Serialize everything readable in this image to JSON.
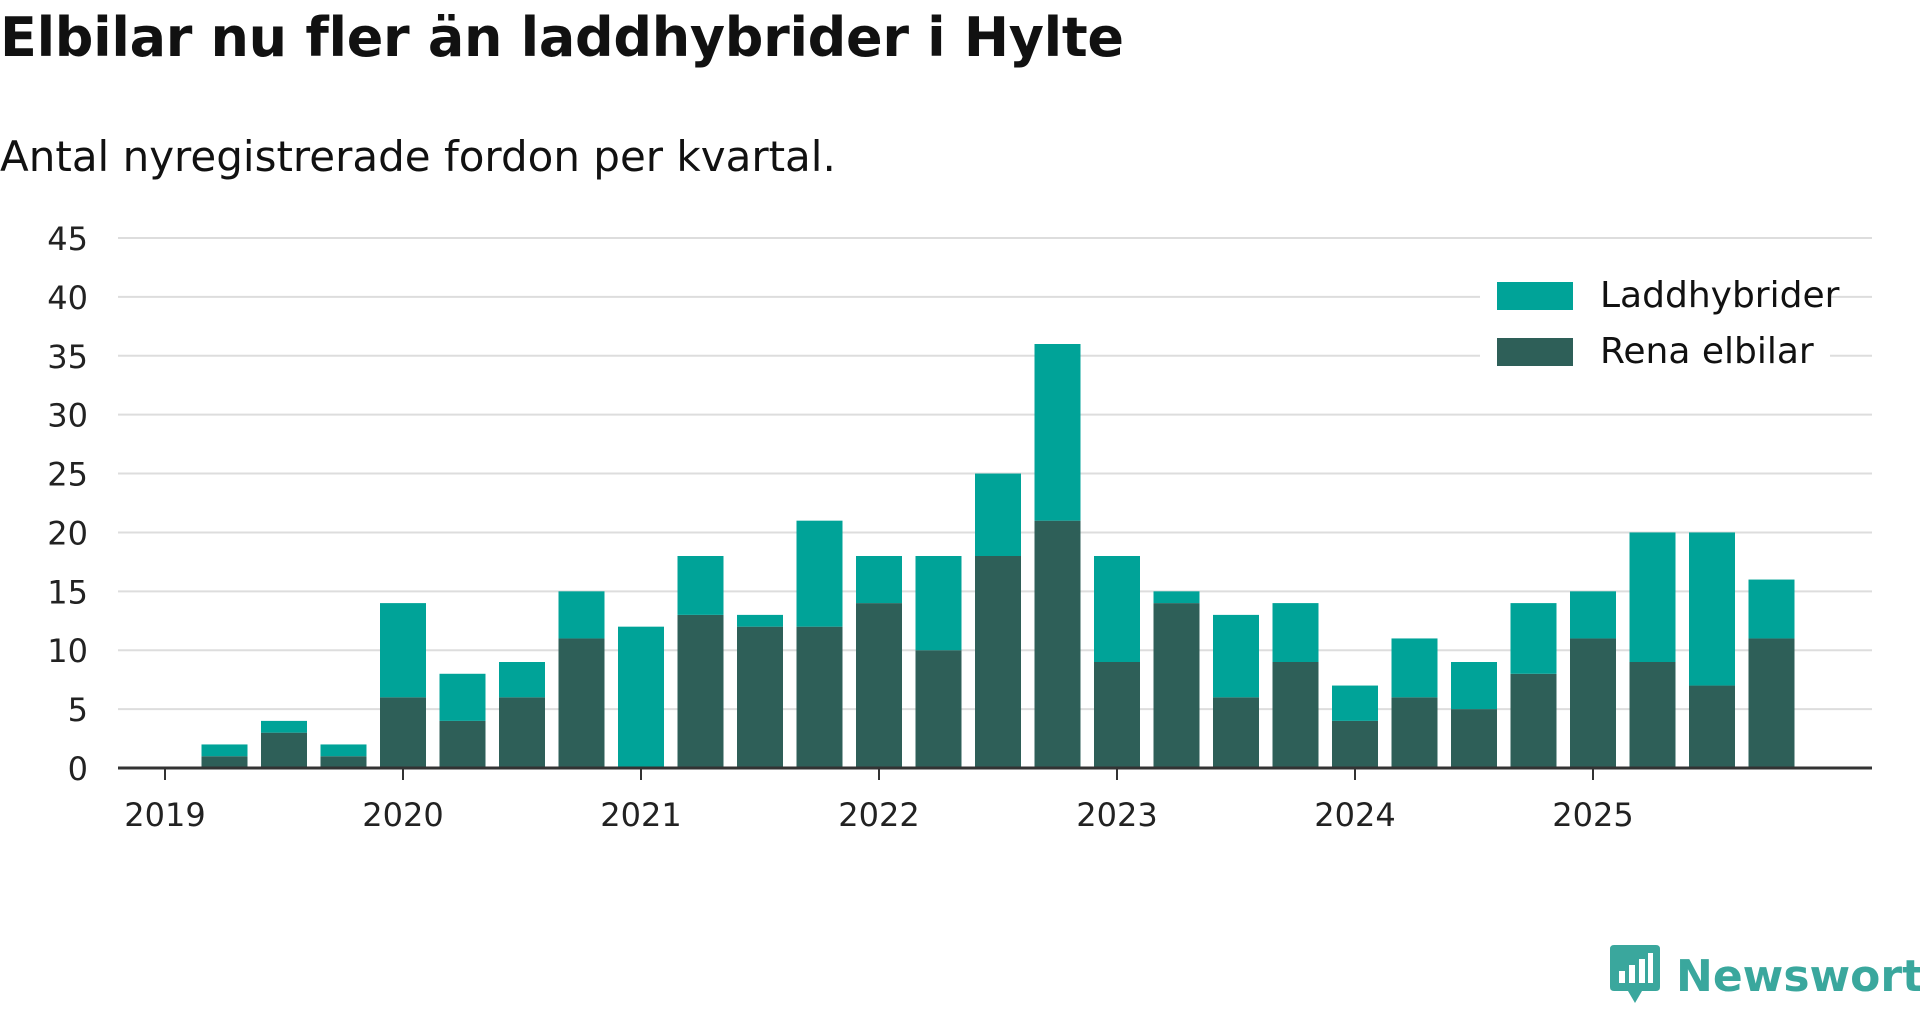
{
  "title": "Elbilar nu fler än laddhybrider i Hylte",
  "subtitle": "Antal nyregistrerade fordon per kvartal.",
  "brand": "Newsworthy",
  "colors": {
    "laddhybrider": "#00a398",
    "rena_elbilar": "#2e5f58",
    "grid": "#dddddd",
    "axis": "#333333",
    "brand": "#3aa79d"
  },
  "chart_data": {
    "type": "bar",
    "stacked": true,
    "title": "Elbilar nu fler än laddhybrider i Hylte",
    "subtitle": "Antal nyregistrerade fordon per kvartal.",
    "xlabel": "",
    "ylabel": "",
    "ylim": [
      0,
      45
    ],
    "yticks": [
      "0",
      "5",
      "10",
      "15",
      "20",
      "25",
      "30",
      "35",
      "40",
      "45"
    ],
    "grid": true,
    "legend_position": "top-right",
    "categories": [
      "2019-Q1",
      "2019-Q2",
      "2019-Q3",
      "2019-Q4",
      "2020-Q1",
      "2020-Q2",
      "2020-Q3",
      "2020-Q4",
      "2021-Q1",
      "2021-Q2",
      "2021-Q3",
      "2021-Q4",
      "2022-Q1",
      "2022-Q2",
      "2022-Q3",
      "2022-Q4",
      "2023-Q1",
      "2023-Q2",
      "2023-Q3",
      "2023-Q4",
      "2024-Q1",
      "2024-Q2",
      "2024-Q3",
      "2024-Q4",
      "2025-Q1",
      "2025-Q2",
      "2025-Q3",
      "2025-Q4"
    ],
    "year_labels": [
      "2019",
      "2020",
      "2021",
      "2022",
      "2023",
      "2024",
      "2025"
    ],
    "series": [
      {
        "name": "Rena elbilar",
        "color": "#2e5f58",
        "values": [
          0,
          1,
          3,
          1,
          6,
          4,
          6,
          11,
          0,
          13,
          12,
          12,
          14,
          10,
          18,
          21,
          9,
          14,
          6,
          9,
          4,
          6,
          5,
          8,
          11,
          9,
          7,
          11
        ]
      },
      {
        "name": "Laddhybrider",
        "color": "#00a398",
        "values": [
          0,
          1,
          1,
          1,
          8,
          4,
          3,
          4,
          12,
          5,
          1,
          9,
          4,
          8,
          7,
          15,
          9,
          1,
          7,
          5,
          3,
          5,
          4,
          6,
          4,
          11,
          13,
          5
        ]
      }
    ],
    "legend": [
      "Laddhybrider",
      "Rena elbilar"
    ]
  }
}
